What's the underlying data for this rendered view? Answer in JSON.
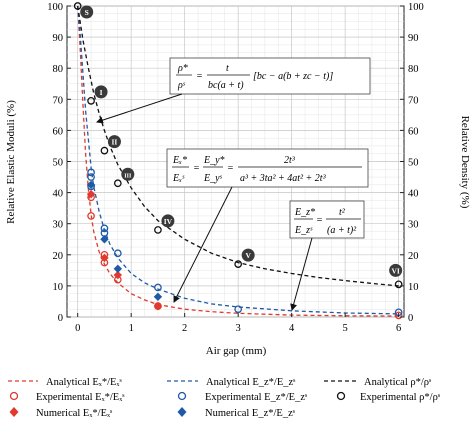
{
  "chart_data": {
    "type": "scatter",
    "xlabel": "Air gap (mm)",
    "ylabel": "Relative Elastic Moduli (%)",
    "y2label": "Relative Density (%)",
    "xlim": [
      -0.2,
      6.1
    ],
    "ylim": [
      0,
      100
    ],
    "y2lim": [
      0,
      100
    ],
    "x_ticks": [
      "0",
      "1",
      "2",
      "3",
      "4",
      "5",
      "6"
    ],
    "y_ticks": [
      "0",
      "10",
      "20",
      "30",
      "40",
      "50",
      "60",
      "70",
      "80",
      "90",
      "100"
    ],
    "y2_ticks": [
      "0",
      "10",
      "20",
      "30",
      "40",
      "50",
      "60",
      "70",
      "80",
      "90",
      "100"
    ],
    "grid": true,
    "legend_position": "bottom",
    "colors": {
      "red": "#e03a2e",
      "blue": "#1f5aa6",
      "black": "#111111"
    },
    "analytical_curves": [
      {
        "legend": "Analytical Eₓ*/Eₓˢ",
        "color": "#e03a2e",
        "x": [
          0,
          0.05,
          0.1,
          0.15,
          0.2,
          0.25,
          0.3,
          0.4,
          0.5,
          0.6,
          0.75,
          1.0,
          1.25,
          1.5,
          2.0,
          2.5,
          3.0,
          4.0,
          5.0,
          6.0
        ],
        "y": [
          100,
          85,
          68,
          52,
          41,
          33,
          27.5,
          21,
          17,
          14,
          11,
          7.5,
          5.5,
          4,
          2.5,
          1.7,
          1.2,
          0.6,
          0.4,
          0.3
        ]
      },
      {
        "legend": "Analytical Eᶻ*/Eᶻˢ",
        "color": "#1f5aa6",
        "x": [
          0,
          0.05,
          0.1,
          0.15,
          0.2,
          0.25,
          0.3,
          0.4,
          0.5,
          0.6,
          0.75,
          1.0,
          1.25,
          1.5,
          2.0,
          2.5,
          3.0,
          4.0,
          5.0,
          6.0
        ],
        "y": [
          100,
          90,
          78,
          66,
          57,
          48,
          42,
          34,
          28,
          23.5,
          19,
          14,
          11,
          9,
          6,
          4.2,
          3.2,
          2.0,
          1.3,
          1.0
        ]
      },
      {
        "legend": "Analytical ρ*/ρˢ",
        "color": "#111111",
        "x": [
          0,
          0.1,
          0.2,
          0.3,
          0.4,
          0.5,
          0.6,
          0.75,
          1.0,
          1.25,
          1.5,
          2.0,
          2.5,
          3.0,
          3.5,
          4.0,
          4.5,
          5.0,
          5.5,
          6.0
        ],
        "y": [
          100,
          89,
          80,
          72,
          65.5,
          60,
          55,
          49,
          41.5,
          35.5,
          31,
          25,
          20.5,
          17.5,
          15.5,
          14,
          12.7,
          11.7,
          10.8,
          10
        ]
      }
    ],
    "experimental_series": [
      {
        "legend": "Experimental Eₓ*/Eₓˢ",
        "color": "#e03a2e",
        "x": [
          0.25,
          0.25,
          0.5,
          0.5,
          0.75,
          1.5,
          6.0
        ],
        "y": [
          38.5,
          32.5,
          20,
          17.5,
          12,
          3.5,
          0.5
        ]
      },
      {
        "legend": "Experimental Eᶻ*/Eᶻˢ",
        "color": "#1f5aa6",
        "x": [
          0.25,
          0.25,
          0.25,
          0.5,
          0.5,
          0.75,
          1.5,
          3.0,
          6.0
        ],
        "y": [
          46.5,
          45,
          42,
          28.5,
          27,
          20.5,
          9.5,
          2.5,
          1.5
        ]
      },
      {
        "legend": "Experimental ρ*/ρˢ",
        "color": "#111111",
        "x": [
          0,
          0.25,
          0.5,
          0.75,
          1.5,
          3.0,
          6.0
        ],
        "y": [
          100,
          69.5,
          53.5,
          43,
          28,
          17,
          10.5
        ]
      }
    ],
    "numerical_series": [
      {
        "legend": "Numerical Eₓ*/Eₓˢ",
        "color": "#e03a2e",
        "marker": "diamond",
        "x": [
          0.25,
          0.5,
          0.75,
          1.5
        ],
        "y": [
          39.5,
          19,
          13.5,
          3.5
        ]
      },
      {
        "legend": "Numerical Eᶻ*/Eᶻˢ",
        "color": "#1f5aa6",
        "marker": "diamond",
        "x": [
          0.25,
          0.5,
          0.75,
          1.5
        ],
        "y": [
          42.5,
          25,
          15.5,
          6.5
        ]
      }
    ],
    "roman_labels": [
      {
        "text": "S",
        "x": 0.0,
        "y": 100
      },
      {
        "text": "I",
        "x": 0.25,
        "y": 69.5
      },
      {
        "text": "II",
        "x": 0.5,
        "y": 53.5
      },
      {
        "text": "III",
        "x": 0.75,
        "y": 43
      },
      {
        "text": "IV",
        "x": 1.5,
        "y": 28
      },
      {
        "text": "V",
        "x": 3.0,
        "y": 17
      },
      {
        "text": "VI",
        "x": 6.0,
        "y": 10.5
      }
    ],
    "annotations": [
      {
        "id": "density",
        "text": "ρ* / ρˢ = t / (bc(a+t)) [bc − a(b + zc − t)]",
        "arrow_to": {
          "x": 0.35,
          "y": 60.5
        }
      },
      {
        "id": "inplane",
        "text": "Eₓ*/Eₓˢ = Eᵧ*/Eᵧˢ = 2t³ / (a³ + 3ta² + 4at² + 2t³)",
        "arrow_to": {
          "x": 1.85,
          "y": 2.5
        }
      },
      {
        "id": "outplane",
        "text": "Eᶻ*/Eᶻˢ = t² / (a + t)²",
        "arrow_to": {
          "x": 4.05,
          "y": 0.3
        }
      }
    ]
  }
}
